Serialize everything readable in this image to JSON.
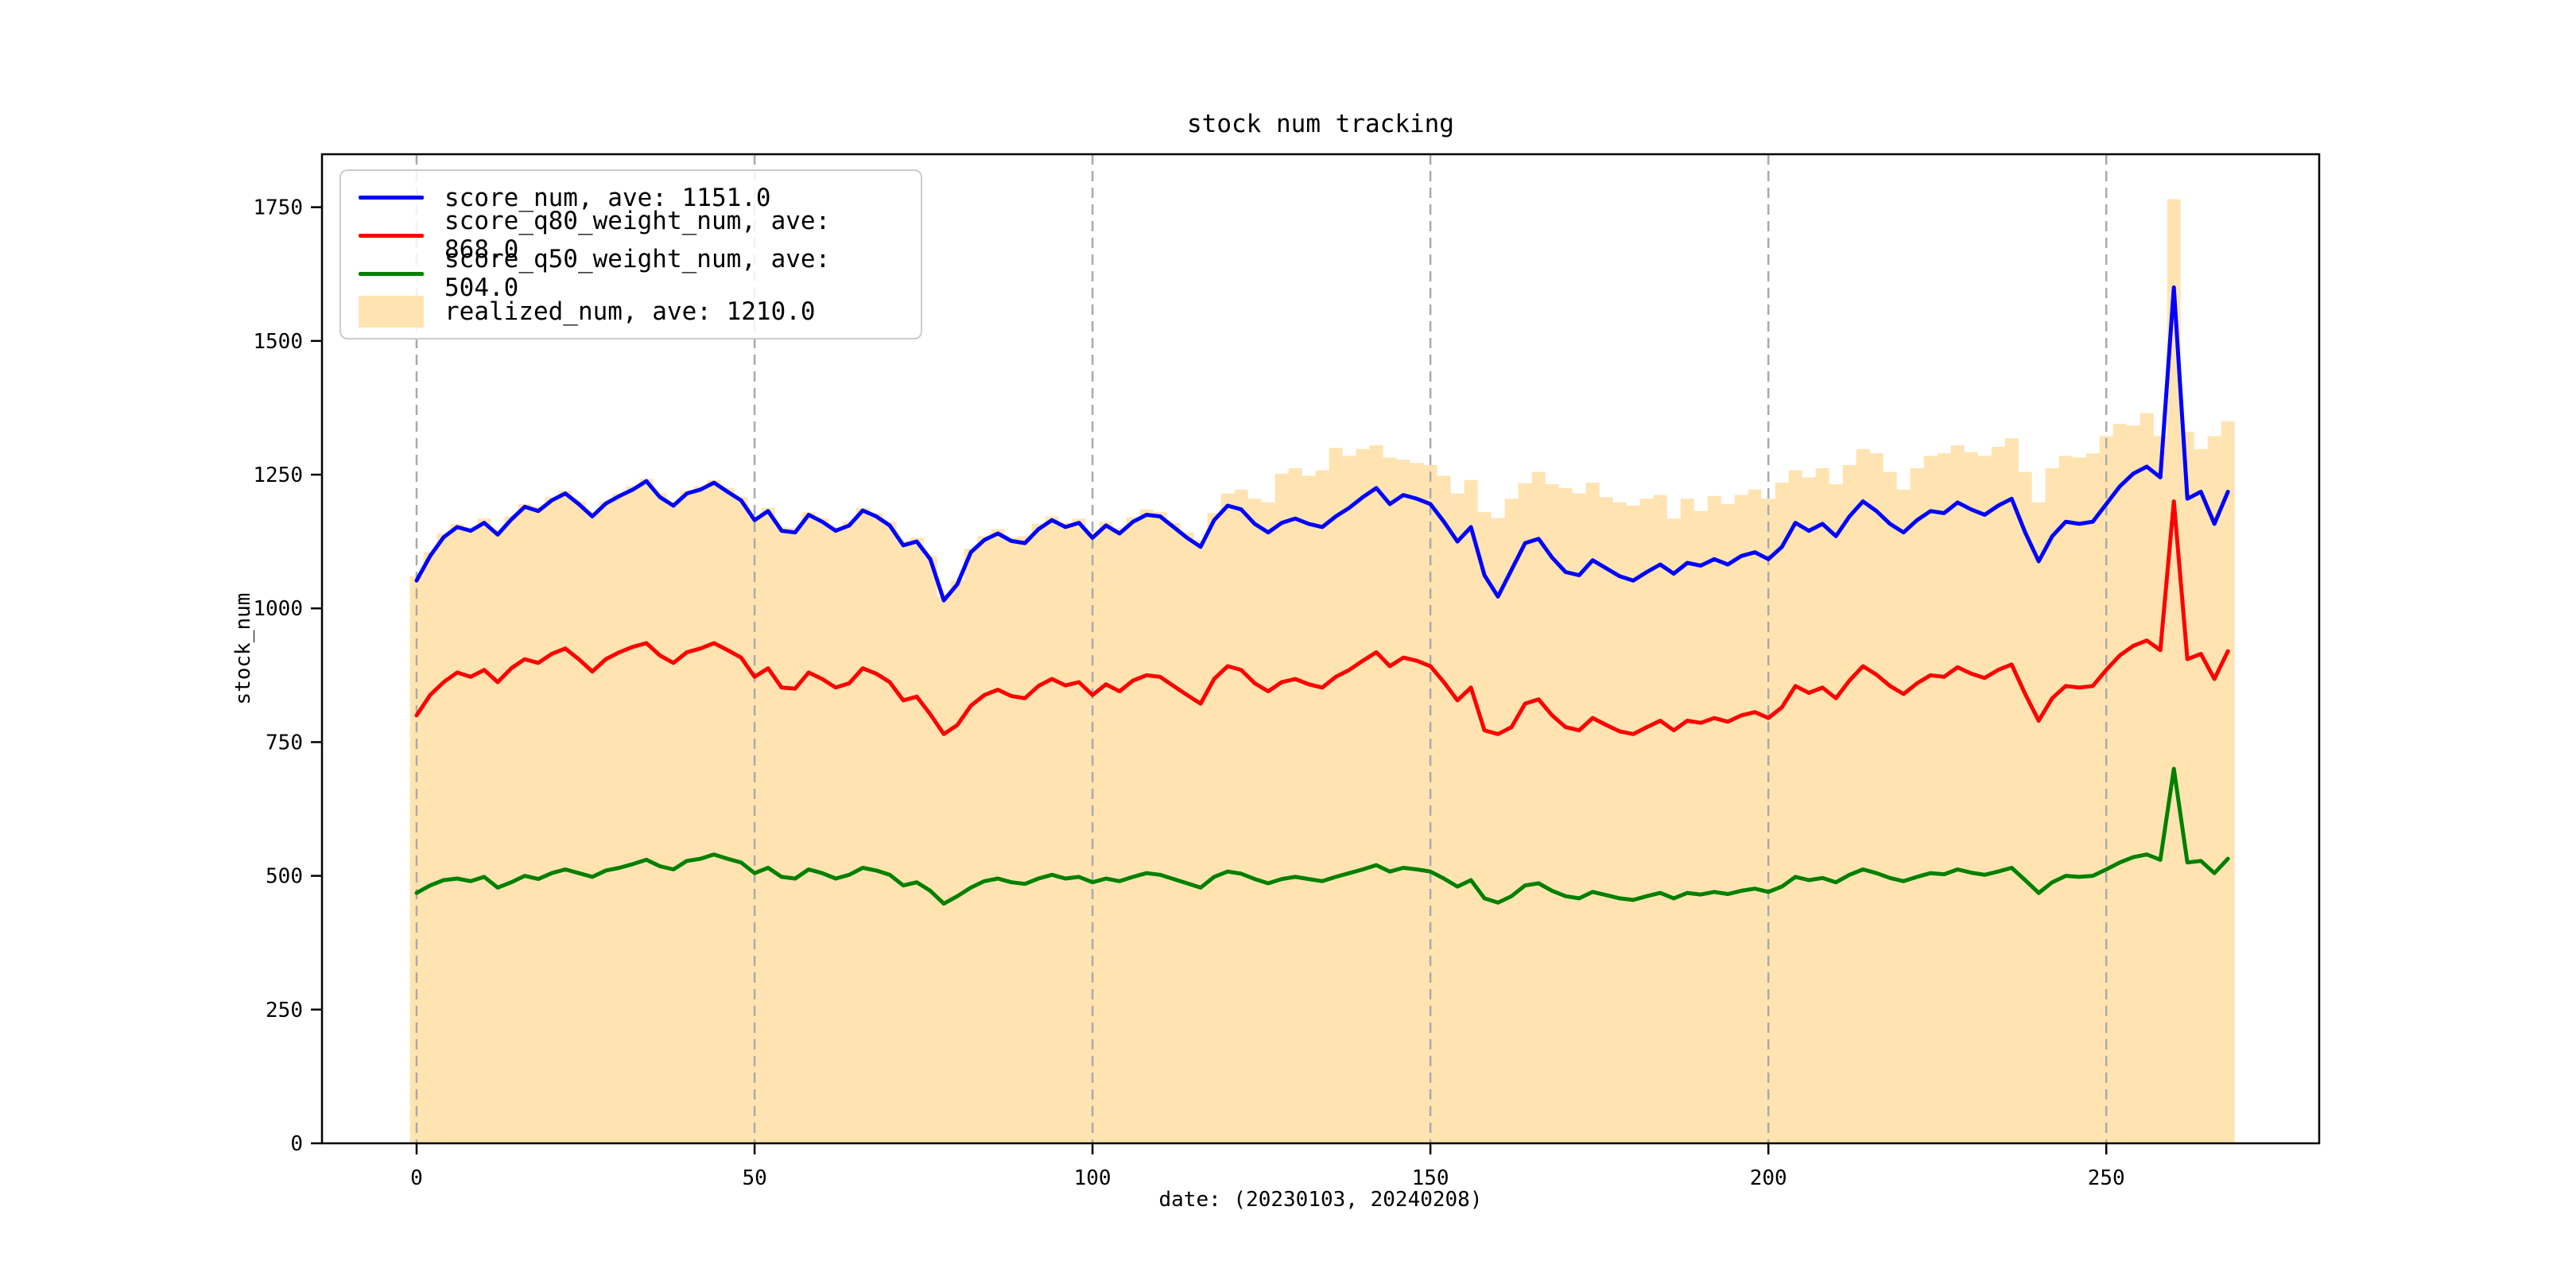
{
  "figure": {
    "background": "#ffffff",
    "title": "stock num tracking",
    "xlabel": "date: (20230103, 20240208)",
    "ylabel": "stock_num"
  },
  "legend": {
    "items": [
      {
        "label": "score_num, ave: 1151.0",
        "color": "#0000ff",
        "swatch": "line"
      },
      {
        "label": "score_q80_weight_num, ave: 868.0",
        "color": "#ff0000",
        "swatch": "line"
      },
      {
        "label": "score_q50_weight_num, ave: 504.0",
        "color": "#008000",
        "swatch": "line"
      },
      {
        "label": "realized_num, ave: 1210.0",
        "color": "#ffe4b2",
        "swatch": "patch"
      }
    ]
  },
  "chart_data": {
    "type": "line",
    "title": "stock num tracking",
    "xlabel": "date: (20230103, 20240208)",
    "ylabel": "stock_num",
    "xlim": [
      -14,
      281.5
    ],
    "ylim": [
      0,
      1849
    ],
    "xticks": [
      0,
      50,
      100,
      150,
      200,
      250
    ],
    "yticks": [
      0,
      250,
      500,
      750,
      1000,
      1250,
      1500,
      1750
    ],
    "grid": {
      "axis": "x",
      "style": "dashed",
      "color": "#aaaaaa"
    },
    "legend_position": "upper-left",
    "x": [
      0,
      2,
      4,
      6,
      8,
      10,
      12,
      14,
      16,
      18,
      20,
      22,
      24,
      26,
      28,
      30,
      32,
      34,
      36,
      38,
      40,
      42,
      44,
      46,
      48,
      50,
      52,
      54,
      56,
      58,
      60,
      62,
      64,
      66,
      68,
      70,
      72,
      74,
      76,
      78,
      80,
      82,
      84,
      86,
      88,
      90,
      92,
      94,
      96,
      98,
      100,
      102,
      104,
      106,
      108,
      110,
      112,
      114,
      116,
      118,
      120,
      122,
      124,
      126,
      128,
      130,
      132,
      134,
      136,
      138,
      140,
      142,
      144,
      146,
      148,
      150,
      152,
      154,
      156,
      158,
      160,
      162,
      164,
      166,
      168,
      170,
      172,
      174,
      176,
      178,
      180,
      182,
      184,
      186,
      188,
      190,
      192,
      194,
      196,
      198,
      200,
      202,
      204,
      206,
      208,
      210,
      212,
      214,
      216,
      218,
      220,
      222,
      224,
      226,
      228,
      230,
      232,
      234,
      236,
      238,
      240,
      242,
      244,
      246,
      248,
      250,
      252,
      254,
      256,
      258,
      260,
      262,
      264,
      266,
      268
    ],
    "series": [
      {
        "name": "score_num",
        "average": 1151.0,
        "color": "#0000ff",
        "values": [
          1052,
          1098,
          1133,
          1152,
          1145,
          1160,
          1138,
          1166,
          1190,
          1182,
          1202,
          1215,
          1195,
          1172,
          1196,
          1210,
          1222,
          1238,
          1208,
          1192,
          1215,
          1222,
          1235,
          1218,
          1202,
          1165,
          1182,
          1145,
          1142,
          1175,
          1162,
          1145,
          1155,
          1183,
          1172,
          1155,
          1118,
          1125,
          1092,
          1015,
          1045,
          1105,
          1128,
          1140,
          1126,
          1122,
          1148,
          1165,
          1152,
          1160,
          1132,
          1155,
          1140,
          1162,
          1175,
          1172,
          1152,
          1132,
          1115,
          1165,
          1192,
          1185,
          1158,
          1142,
          1160,
          1168,
          1158,
          1152,
          1172,
          1188,
          1208,
          1225,
          1195,
          1212,
          1205,
          1195,
          1162,
          1125,
          1152,
          1062,
          1022,
          1072,
          1122,
          1130,
          1095,
          1068,
          1062,
          1090,
          1075,
          1060,
          1052,
          1068,
          1082,
          1065,
          1085,
          1080,
          1092,
          1082,
          1098,
          1105,
          1092,
          1115,
          1160,
          1145,
          1158,
          1135,
          1172,
          1200,
          1182,
          1158,
          1142,
          1165,
          1182,
          1178,
          1198,
          1185,
          1175,
          1192,
          1205,
          1142,
          1088,
          1135,
          1162,
          1158,
          1162,
          1195,
          1228,
          1252,
          1265,
          1245,
          1600,
          1205,
          1218,
          1158,
          1218
        ]
      },
      {
        "name": "score_q80_weight_num",
        "average": 868.0,
        "color": "#ff0000",
        "values": [
          800,
          838,
          862,
          880,
          872,
          885,
          862,
          888,
          905,
          898,
          915,
          925,
          905,
          882,
          905,
          918,
          928,
          935,
          912,
          898,
          918,
          925,
          935,
          922,
          908,
          872,
          888,
          852,
          850,
          880,
          868,
          852,
          860,
          888,
          878,
          862,
          828,
          835,
          802,
          765,
          782,
          818,
          838,
          848,
          836,
          832,
          855,
          868,
          856,
          862,
          838,
          858,
          845,
          865,
          875,
          872,
          855,
          838,
          822,
          868,
          892,
          885,
          860,
          845,
          862,
          868,
          858,
          852,
          872,
          885,
          902,
          918,
          892,
          908,
          902,
          892,
          862,
          828,
          852,
          772,
          765,
          778,
          822,
          830,
          800,
          778,
          772,
          795,
          782,
          770,
          765,
          778,
          790,
          772,
          790,
          786,
          795,
          788,
          800,
          806,
          795,
          815,
          855,
          842,
          852,
          832,
          865,
          892,
          876,
          855,
          840,
          860,
          875,
          872,
          890,
          878,
          870,
          885,
          895,
          840,
          790,
          832,
          855,
          852,
          855,
          885,
          912,
          930,
          940,
          922,
          1200,
          905,
          915,
          868,
          920
        ]
      },
      {
        "name": "score_q50_weight_num",
        "average": 504.0,
        "color": "#008000",
        "values": [
          468,
          482,
          492,
          495,
          490,
          498,
          478,
          488,
          500,
          494,
          505,
          512,
          505,
          498,
          510,
          515,
          522,
          530,
          518,
          512,
          528,
          532,
          540,
          532,
          525,
          505,
          515,
          498,
          495,
          512,
          505,
          495,
          502,
          515,
          510,
          502,
          482,
          488,
          472,
          448,
          462,
          478,
          490,
          495,
          488,
          485,
          495,
          502,
          495,
          498,
          488,
          495,
          490,
          498,
          505,
          502,
          494,
          486,
          478,
          498,
          508,
          504,
          494,
          486,
          494,
          498,
          494,
          490,
          498,
          505,
          512,
          520,
          508,
          515,
          512,
          508,
          495,
          480,
          492,
          458,
          450,
          462,
          482,
          486,
          472,
          462,
          458,
          470,
          464,
          458,
          455,
          462,
          468,
          458,
          468,
          465,
          470,
          466,
          472,
          476,
          470,
          480,
          498,
          492,
          496,
          488,
          502,
          512,
          505,
          496,
          490,
          498,
          505,
          503,
          512,
          506,
          502,
          508,
          515,
          492,
          468,
          488,
          500,
          498,
          500,
          512,
          525,
          535,
          540,
          530,
          700,
          525,
          528,
          505,
          532
        ]
      }
    ],
    "area_series": {
      "name": "realized_num",
      "average": 1210.0,
      "color": "#ffe4b2",
      "style": "stepped-fill",
      "values": [
        1060,
        1105,
        1140,
        1158,
        1152,
        1168,
        1145,
        1172,
        1195,
        1190,
        1208,
        1220,
        1200,
        1180,
        1200,
        1215,
        1228,
        1242,
        1215,
        1198,
        1220,
        1228,
        1240,
        1225,
        1208,
        1172,
        1188,
        1152,
        1150,
        1180,
        1168,
        1152,
        1162,
        1188,
        1178,
        1162,
        1125,
        1132,
        1098,
        1022,
        1052,
        1112,
        1135,
        1148,
        1132,
        1135,
        1158,
        1172,
        1160,
        1168,
        1142,
        1162,
        1150,
        1170,
        1185,
        1180,
        1160,
        1142,
        1128,
        1178,
        1215,
        1222,
        1205,
        1198,
        1252,
        1262,
        1248,
        1258,
        1300,
        1285,
        1298,
        1305,
        1282,
        1278,
        1272,
        1268,
        1248,
        1215,
        1240,
        1180,
        1169,
        1205,
        1234,
        1255,
        1232,
        1225,
        1215,
        1235,
        1208,
        1198,
        1192,
        1205,
        1212,
        1168,
        1205,
        1182,
        1210,
        1195,
        1212,
        1222,
        1205,
        1235,
        1258,
        1245,
        1262,
        1232,
        1268,
        1298,
        1290,
        1255,
        1222,
        1262,
        1285,
        1290,
        1305,
        1292,
        1285,
        1302,
        1318,
        1255,
        1198,
        1262,
        1285,
        1282,
        1290,
        1322,
        1345,
        1342,
        1365,
        1322,
        1765,
        1330,
        1298,
        1322,
        1350
      ]
    }
  }
}
